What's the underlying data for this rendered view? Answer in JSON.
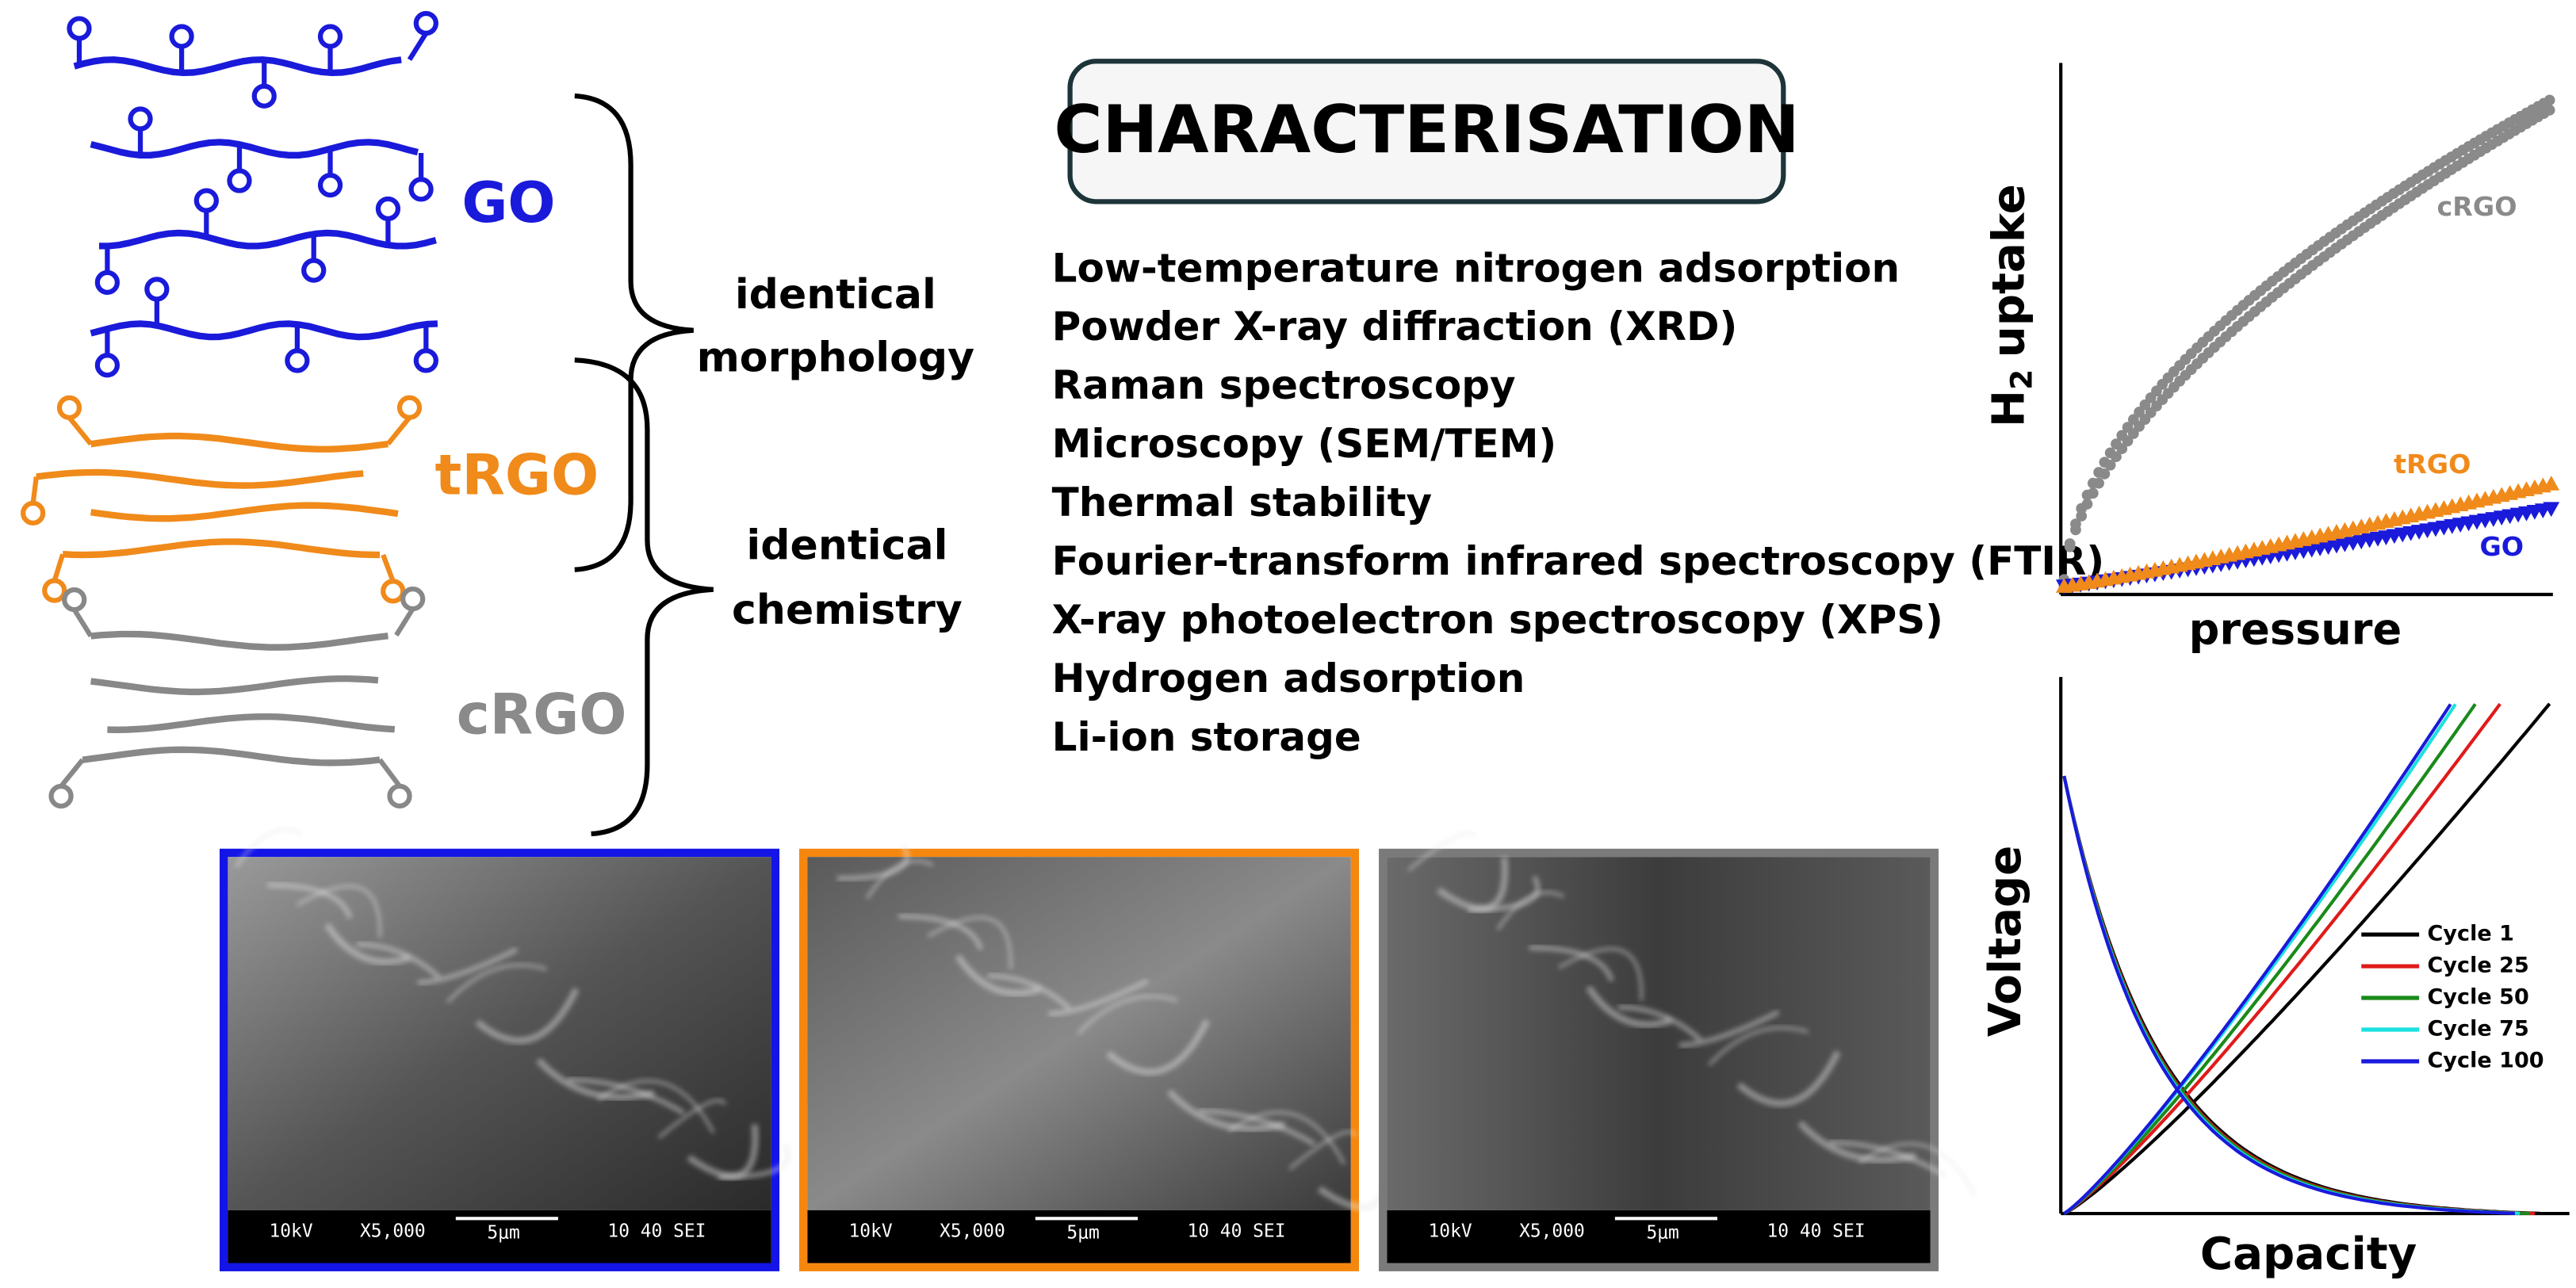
{
  "sheets": [
    {
      "label": "GO"
    },
    {
      "label": "tRGO"
    },
    {
      "label": "cRGO"
    }
  ],
  "brackets": [
    {
      "label_lines": [
        "identical",
        "morphology"
      ]
    },
    {
      "label_lines": [
        "identical",
        "chemistry"
      ]
    }
  ],
  "title": "CHARACTERISATION",
  "techniques": [
    "Low-temperature nitrogen adsorption",
    "Powder X-ray diffraction (XRD)",
    "Raman spectroscopy",
    "Microscopy (SEM/TEM)",
    "Thermal stability",
    "Fourier-transform infrared spectroscopy (FTIR)",
    "X-ray photoelectron spectroscopy (XPS)",
    "Hydrogen adsorption",
    "Li-ion storage"
  ],
  "hydrogen_plot": {
    "y_label": {
      "text": "H",
      "subscript": "2",
      "rest": "uptake"
    },
    "x_label": "pressure",
    "series": [
      "cRGO",
      "tRGO",
      "GO"
    ]
  },
  "voltage_plot": {
    "y_label": "Voltage",
    "x_label": "Capacity",
    "legend": [
      "Cycle 1",
      "Cycle 25",
      "Cycle 50",
      "Cycle 75",
      "Cycle 100"
    ]
  },
  "sem_images": [
    {
      "voltage": "10kV",
      "magnification": "X5,000",
      "scale": "5μm",
      "info": "10 40 SEI"
    },
    {
      "voltage": "10kV",
      "magnification": "X5,000",
      "scale": "5μm",
      "info": "10 40 SEI"
    },
    {
      "voltage": "10kV",
      "magnification": "X5,000",
      "scale": "5μm",
      "info": "10 40 SEI"
    }
  ]
}
